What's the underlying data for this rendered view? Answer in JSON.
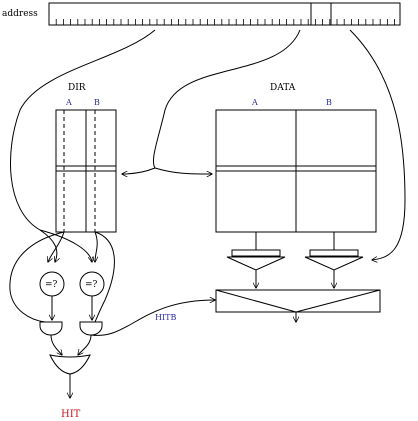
{
  "labels": {
    "address": "address",
    "dir": "DIR",
    "data": "DATA",
    "dir_way_a": "A",
    "dir_way_b": "B",
    "data_way_a": "A",
    "data_way_b": "B",
    "cmp_a": "=?",
    "cmp_b": "=?",
    "hitb": "HITB",
    "hit": "HIT"
  },
  "colors": {
    "way_label": "#2a2aa8",
    "hit": "#c8141e"
  }
}
